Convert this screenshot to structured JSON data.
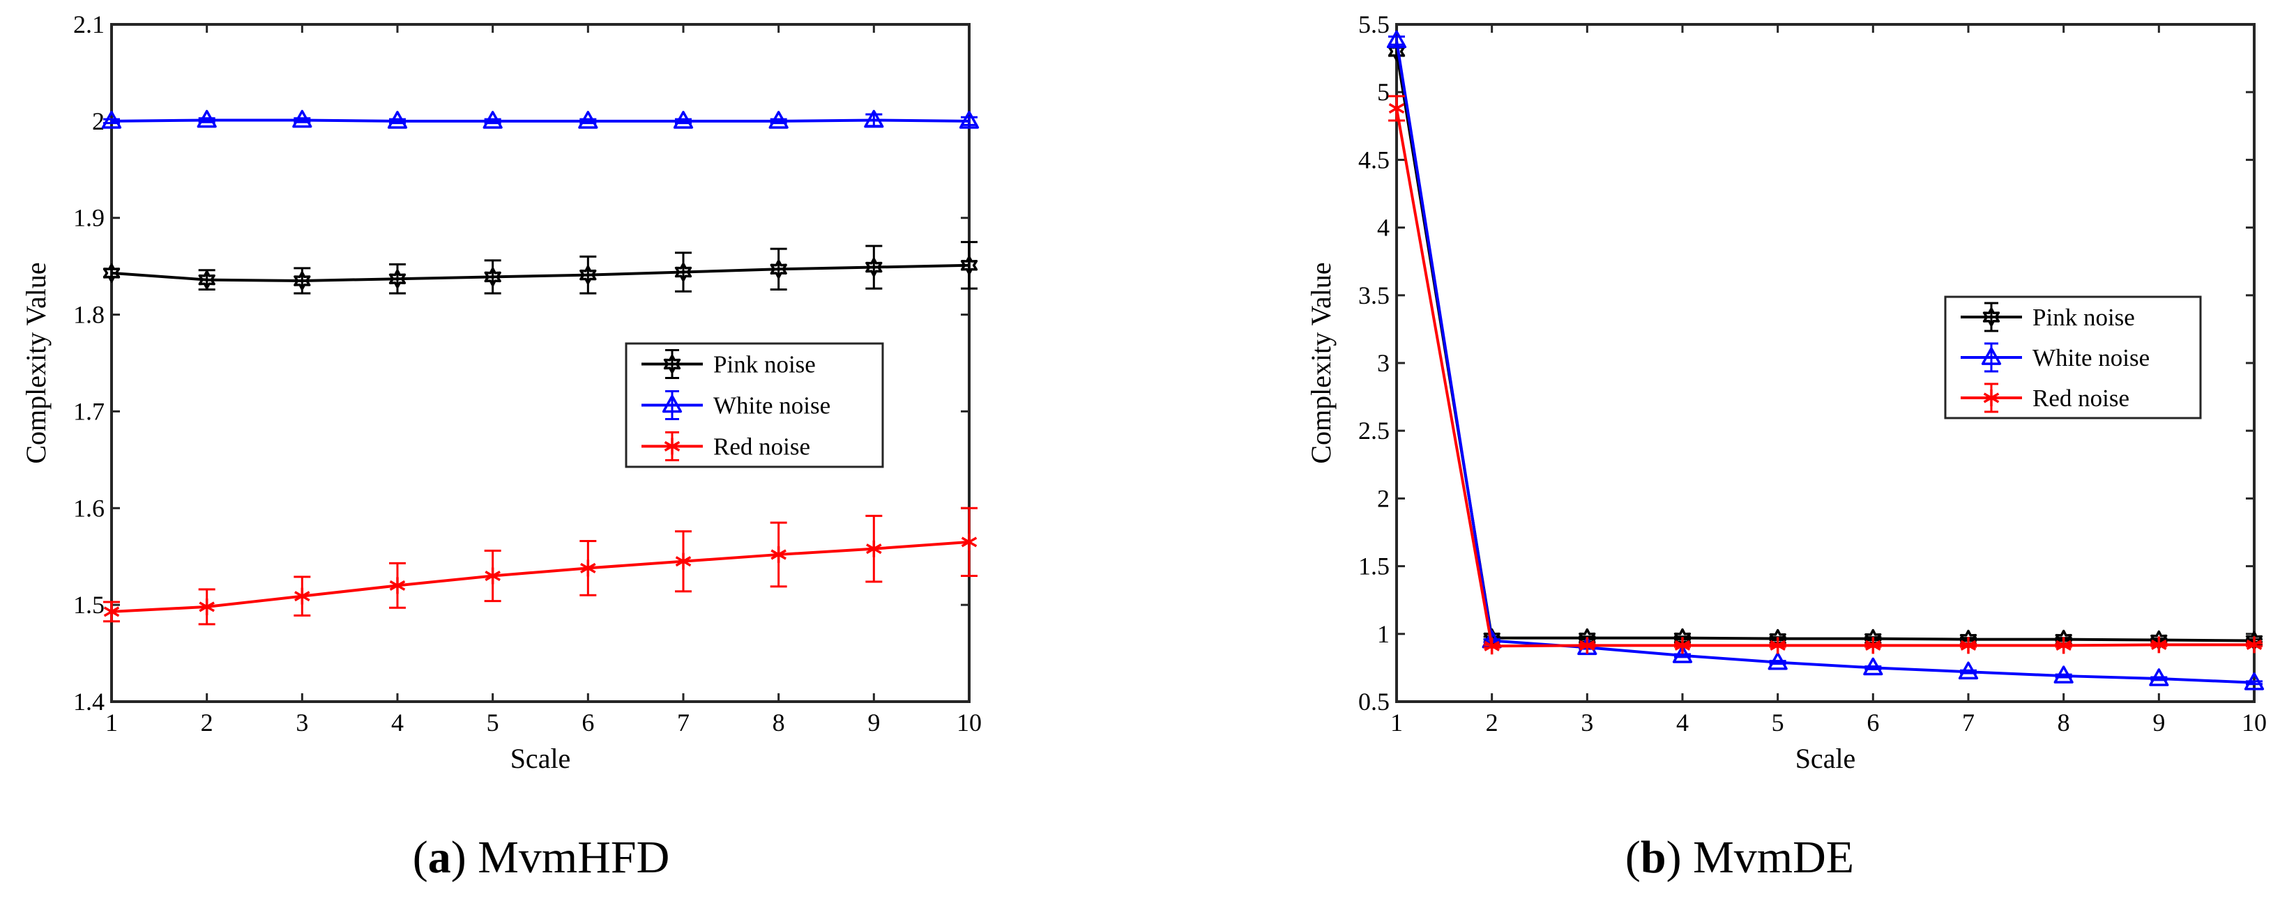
{
  "figure": {
    "captions": [
      {
        "letter": "a",
        "paren_open": "(",
        "paren_close": ")",
        "text": " MvmHFD"
      },
      {
        "letter": "b",
        "paren_open": "(",
        "paren_close": ")",
        "text": " MvmDE"
      }
    ]
  },
  "chart_data": [
    {
      "id": "a",
      "type": "line",
      "title": "",
      "xlabel": "Scale",
      "ylabel": "Complexity Value",
      "xlim": [
        1,
        10
      ],
      "ylim": [
        1.4,
        2.1
      ],
      "x": [
        1,
        2,
        3,
        4,
        5,
        6,
        7,
        8,
        9,
        10
      ],
      "xticks": [
        "1",
        "2",
        "3",
        "4",
        "5",
        "6",
        "7",
        "8",
        "9",
        "10"
      ],
      "yticks": [
        "1.4",
        "1.5",
        "1.6",
        "1.7",
        "1.8",
        "1.9",
        "2",
        "2.1"
      ],
      "ytick_values": [
        1.4,
        1.5,
        1.6,
        1.7,
        1.8,
        1.9,
        2.0,
        2.1
      ],
      "grid": false,
      "legend_position": "center-right",
      "series": [
        {
          "name": "Pink noise",
          "color": "#000000",
          "marker": "hexagram",
          "values": [
            1.843,
            1.836,
            1.835,
            1.837,
            1.839,
            1.841,
            1.844,
            1.847,
            1.849,
            1.851
          ],
          "errors": [
            0.004,
            0.01,
            0.013,
            0.015,
            0.017,
            0.019,
            0.02,
            0.021,
            0.022,
            0.024
          ]
        },
        {
          "name": "White noise",
          "color": "#0000ff",
          "marker": "triangle",
          "values": [
            2.0,
            2.001,
            2.001,
            2.0,
            2.0,
            2.0,
            2.0,
            2.0,
            2.001,
            2.0
          ],
          "errors": [
            0.002,
            0.002,
            0.002,
            0.002,
            0.002,
            0.002,
            0.002,
            0.002,
            0.006,
            0.004
          ]
        },
        {
          "name": "Red noise",
          "color": "#ff0000",
          "marker": "asterisk",
          "values": [
            1.493,
            1.498,
            1.509,
            1.52,
            1.53,
            1.538,
            1.545,
            1.552,
            1.558,
            1.565
          ],
          "errors": [
            0.01,
            0.018,
            0.02,
            0.023,
            0.026,
            0.028,
            0.031,
            0.033,
            0.034,
            0.035
          ]
        }
      ]
    },
    {
      "id": "b",
      "type": "line",
      "title": "",
      "xlabel": "Scale",
      "ylabel": "Complexity Value",
      "xlim": [
        1,
        10
      ],
      "ylim": [
        0.5,
        5.5
      ],
      "x": [
        1,
        2,
        3,
        4,
        5,
        6,
        7,
        8,
        9,
        10
      ],
      "xticks": [
        "1",
        "2",
        "3",
        "4",
        "5",
        "6",
        "7",
        "8",
        "9",
        "10"
      ],
      "yticks": [
        "0.5",
        "1",
        "1.5",
        "2",
        "2.5",
        "3",
        "3.5",
        "4",
        "4.5",
        "5",
        "5.5"
      ],
      "ytick_values": [
        0.5,
        1.0,
        1.5,
        2.0,
        2.5,
        3.0,
        3.5,
        4.0,
        4.5,
        5.0,
        5.5
      ],
      "grid": false,
      "legend_position": "center-right",
      "series": [
        {
          "name": "Pink noise",
          "color": "#000000",
          "marker": "hexagram",
          "values": [
            5.3,
            0.97,
            0.97,
            0.97,
            0.965,
            0.965,
            0.96,
            0.96,
            0.955,
            0.95
          ],
          "errors": [
            0.03,
            0.01,
            0.01,
            0.01,
            0.01,
            0.01,
            0.01,
            0.01,
            0.01,
            0.01
          ]
        },
        {
          "name": "White noise",
          "color": "#0000ff",
          "marker": "triangle",
          "values": [
            5.38,
            0.95,
            0.9,
            0.84,
            0.79,
            0.75,
            0.72,
            0.69,
            0.67,
            0.64
          ],
          "errors": [
            0.03,
            0.01,
            0.01,
            0.01,
            0.01,
            0.01,
            0.01,
            0.01,
            0.01,
            0.01
          ]
        },
        {
          "name": "Red noise",
          "color": "#ff0000",
          "marker": "asterisk",
          "values": [
            4.88,
            0.91,
            0.915,
            0.915,
            0.915,
            0.915,
            0.915,
            0.915,
            0.92,
            0.92
          ],
          "errors": [
            0.09,
            0.01,
            0.01,
            0.01,
            0.01,
            0.01,
            0.01,
            0.01,
            0.01,
            0.01
          ]
        }
      ]
    }
  ]
}
